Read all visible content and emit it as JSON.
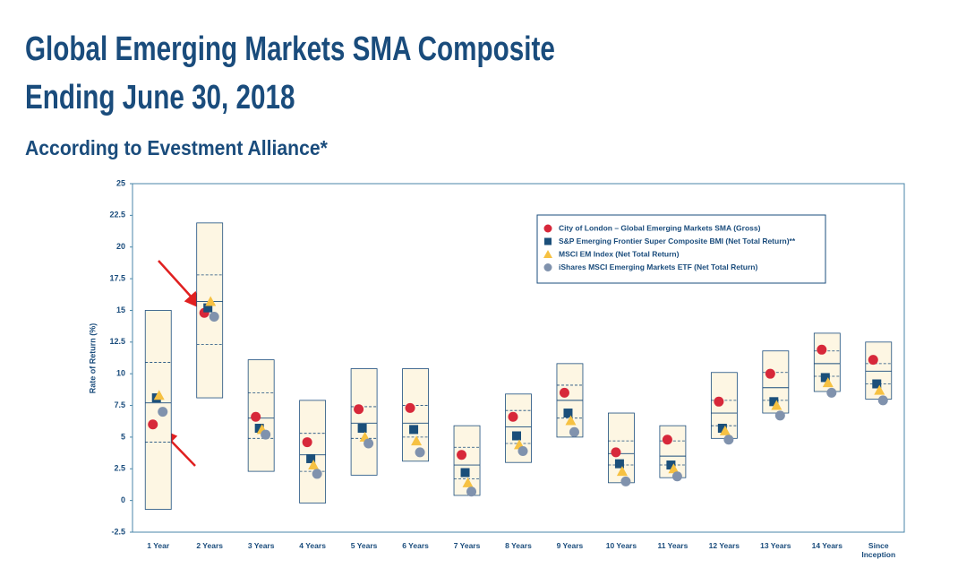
{
  "chart_data": {
    "type": "floating_box",
    "title": "Global Emerging Markets SMA Composite",
    "subtitle": "Ending June 30, 2018",
    "subtitle2": "According to Evestment Alliance*",
    "y_label": "Rate of Return (%)",
    "categories": [
      "1 Year",
      "2 Years",
      "3 Years",
      "4 Years",
      "5 Years",
      "6 Years",
      "7 Years",
      "8 Years",
      "9 Years",
      "10 Years",
      "11 Years",
      "12 Years",
      "13 Years",
      "14 Years",
      "Since Inception"
    ],
    "range_high": [
      15.0,
      21.9,
      11.1,
      7.9,
      10.4,
      10.4,
      5.9,
      8.4,
      10.8,
      6.9,
      5.9,
      10.1,
      11.8,
      13.2,
      12.5
    ],
    "upper_quartile": [
      10.9,
      17.8,
      8.5,
      5.3,
      7.4,
      7.5,
      4.2,
      7.1,
      9.1,
      4.7,
      4.7,
      7.9,
      10.1,
      11.8,
      10.8
    ],
    "median": [
      7.7,
      15.7,
      6.5,
      3.6,
      6.1,
      6.1,
      2.8,
      5.8,
      7.9,
      3.7,
      3.5,
      6.9,
      8.9,
      10.8,
      10.2
    ],
    "lower_quartile": [
      4.6,
      12.3,
      4.9,
      2.3,
      4.9,
      5.0,
      1.7,
      4.5,
      6.5,
      2.8,
      2.8,
      5.9,
      7.9,
      9.8,
      9.2
    ],
    "range_low": [
      -0.7,
      8.1,
      2.3,
      -0.2,
      2.0,
      3.1,
      0.4,
      3.0,
      5.0,
      1.4,
      1.8,
      4.9,
      6.9,
      8.6,
      8.0
    ],
    "series": [
      {
        "name": "City of London – Global Emerging Markets SMA (Gross)",
        "marker": "circle",
        "color": "#d7283a",
        "values": [
          6.0,
          14.8,
          6.6,
          4.6,
          7.2,
          7.3,
          3.6,
          6.6,
          8.5,
          3.8,
          4.8,
          7.8,
          10.0,
          11.9,
          11.1
        ]
      },
      {
        "name": "S&P Emerging Frontier Super Composite BMI (Net Total Return)**",
        "marker": "square",
        "color": "#1b4f7a",
        "values": [
          8.1,
          15.2,
          5.7,
          3.3,
          5.7,
          5.6,
          2.2,
          5.1,
          6.9,
          2.9,
          2.8,
          5.7,
          7.8,
          9.7,
          9.2
        ]
      },
      {
        "name": "MSCI EM Index (Net Total Return)",
        "marker": "triangle",
        "color": "#f6c142",
        "values": [
          8.3,
          15.7,
          5.6,
          2.8,
          5.0,
          4.7,
          1.4,
          4.4,
          6.3,
          2.3,
          2.5,
          5.5,
          7.5,
          9.3,
          8.7
        ]
      },
      {
        "name": "iShares MSCI Emerging Markets ETF (Net Total Return)",
        "marker": "circle",
        "color": "#8092ad",
        "values": [
          7.0,
          14.5,
          5.2,
          2.1,
          4.5,
          3.8,
          0.7,
          3.9,
          5.4,
          1.5,
          1.9,
          4.8,
          6.7,
          8.5,
          7.9
        ]
      }
    ],
    "ylim": [
      -2.5,
      25
    ],
    "yticks": [
      -2.5,
      0,
      2.5,
      5,
      7.5,
      10,
      12.5,
      15,
      17.5,
      20,
      22.5,
      25
    ],
    "legend": "upper right",
    "grid": false
  }
}
